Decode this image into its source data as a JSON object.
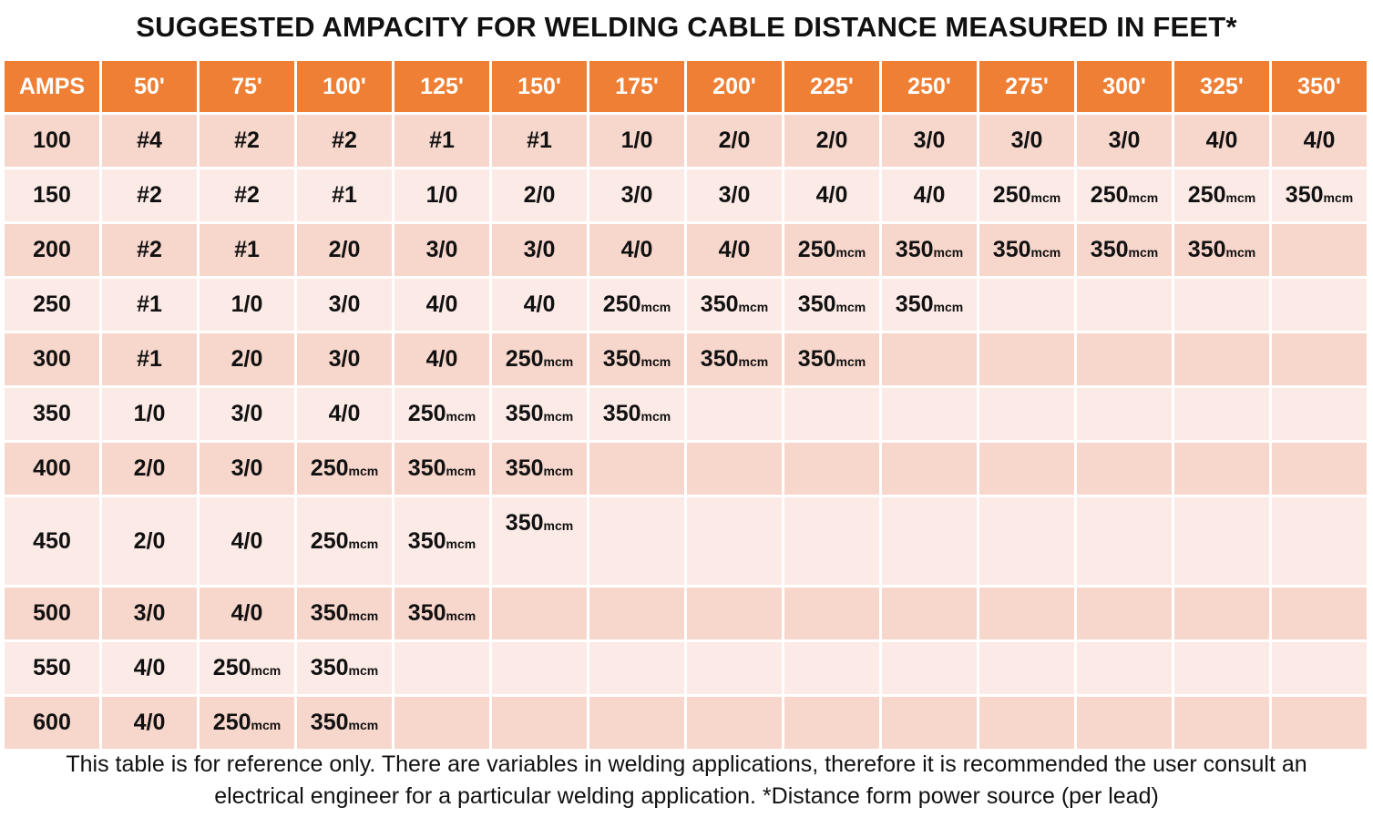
{
  "title": "SUGGESTED AMPACITY FOR WELDING CABLE DISTANCE MEASURED IN FEET*",
  "unit": "mcm",
  "headers": [
    "AMPS",
    "50'",
    "75'",
    "100'",
    "125'",
    "150'",
    "175'",
    "200'",
    "225'",
    "250'",
    "275'",
    "300'",
    "325'",
    "350'"
  ],
  "rows": [
    {
      "amps": "100",
      "cells": [
        "#4",
        "#2",
        "#2",
        "#1",
        "#1",
        "1/0",
        "2/0",
        "2/0",
        "3/0",
        "3/0",
        "3/0",
        "4/0",
        "4/0"
      ]
    },
    {
      "amps": "150",
      "cells": [
        "#2",
        "#2",
        "#1",
        "1/0",
        "2/0",
        "3/0",
        "3/0",
        "4/0",
        "4/0",
        "250",
        "250",
        "250",
        "350"
      ]
    },
    {
      "amps": "200",
      "cells": [
        "#2",
        "#1",
        "2/0",
        "3/0",
        "3/0",
        "4/0",
        "4/0",
        "250",
        "350",
        "350",
        "350",
        "350",
        ""
      ]
    },
    {
      "amps": "250",
      "cells": [
        "#1",
        "1/0",
        "3/0",
        "4/0",
        "4/0",
        "250",
        "350",
        "350",
        "350",
        "",
        "",
        "",
        ""
      ]
    },
    {
      "amps": "300",
      "cells": [
        "#1",
        "2/0",
        "3/0",
        "4/0",
        "250",
        "350",
        "350",
        "350",
        "",
        "",
        "",
        "",
        ""
      ]
    },
    {
      "amps": "350",
      "cells": [
        "1/0",
        "3/0",
        "4/0",
        "250",
        "350",
        "350",
        "",
        "",
        "",
        "",
        "",
        "",
        ""
      ]
    },
    {
      "amps": "400",
      "cells": [
        "2/0",
        "3/0",
        "250",
        "350",
        "350",
        "",
        "",
        "",
        "",
        "",
        "",
        "",
        ""
      ]
    },
    {
      "amps": "450",
      "cells": [
        "2/0",
        "4/0",
        "250",
        "350",
        "350",
        "",
        "",
        "",
        "",
        "",
        "",
        "",
        ""
      ]
    },
    {
      "amps": "500",
      "cells": [
        "3/0",
        "4/0",
        "350",
        "350",
        "",
        "",
        "",
        "",
        "",
        "",
        "",
        "",
        ""
      ]
    },
    {
      "amps": "550",
      "cells": [
        "4/0",
        "250",
        "350",
        "",
        "",
        "",
        "",
        "",
        "",
        "",
        "",
        "",
        ""
      ]
    },
    {
      "amps": "600",
      "cells": [
        "4/0",
        "250",
        "350",
        "",
        "",
        "",
        "",
        "",
        "",
        "",
        "",
        "",
        ""
      ]
    }
  ],
  "note_line1": "This table is for reference only. There are variables in welding applications, therefore it is recommended the user consult an",
  "note_line2": "electrical engineer for a particular welding application. *Distance form power source (per lead)",
  "colors": {
    "header_bg": "#ee7f34",
    "row_dark": "#f7d6cc",
    "row_light": "#fbeae5"
  }
}
